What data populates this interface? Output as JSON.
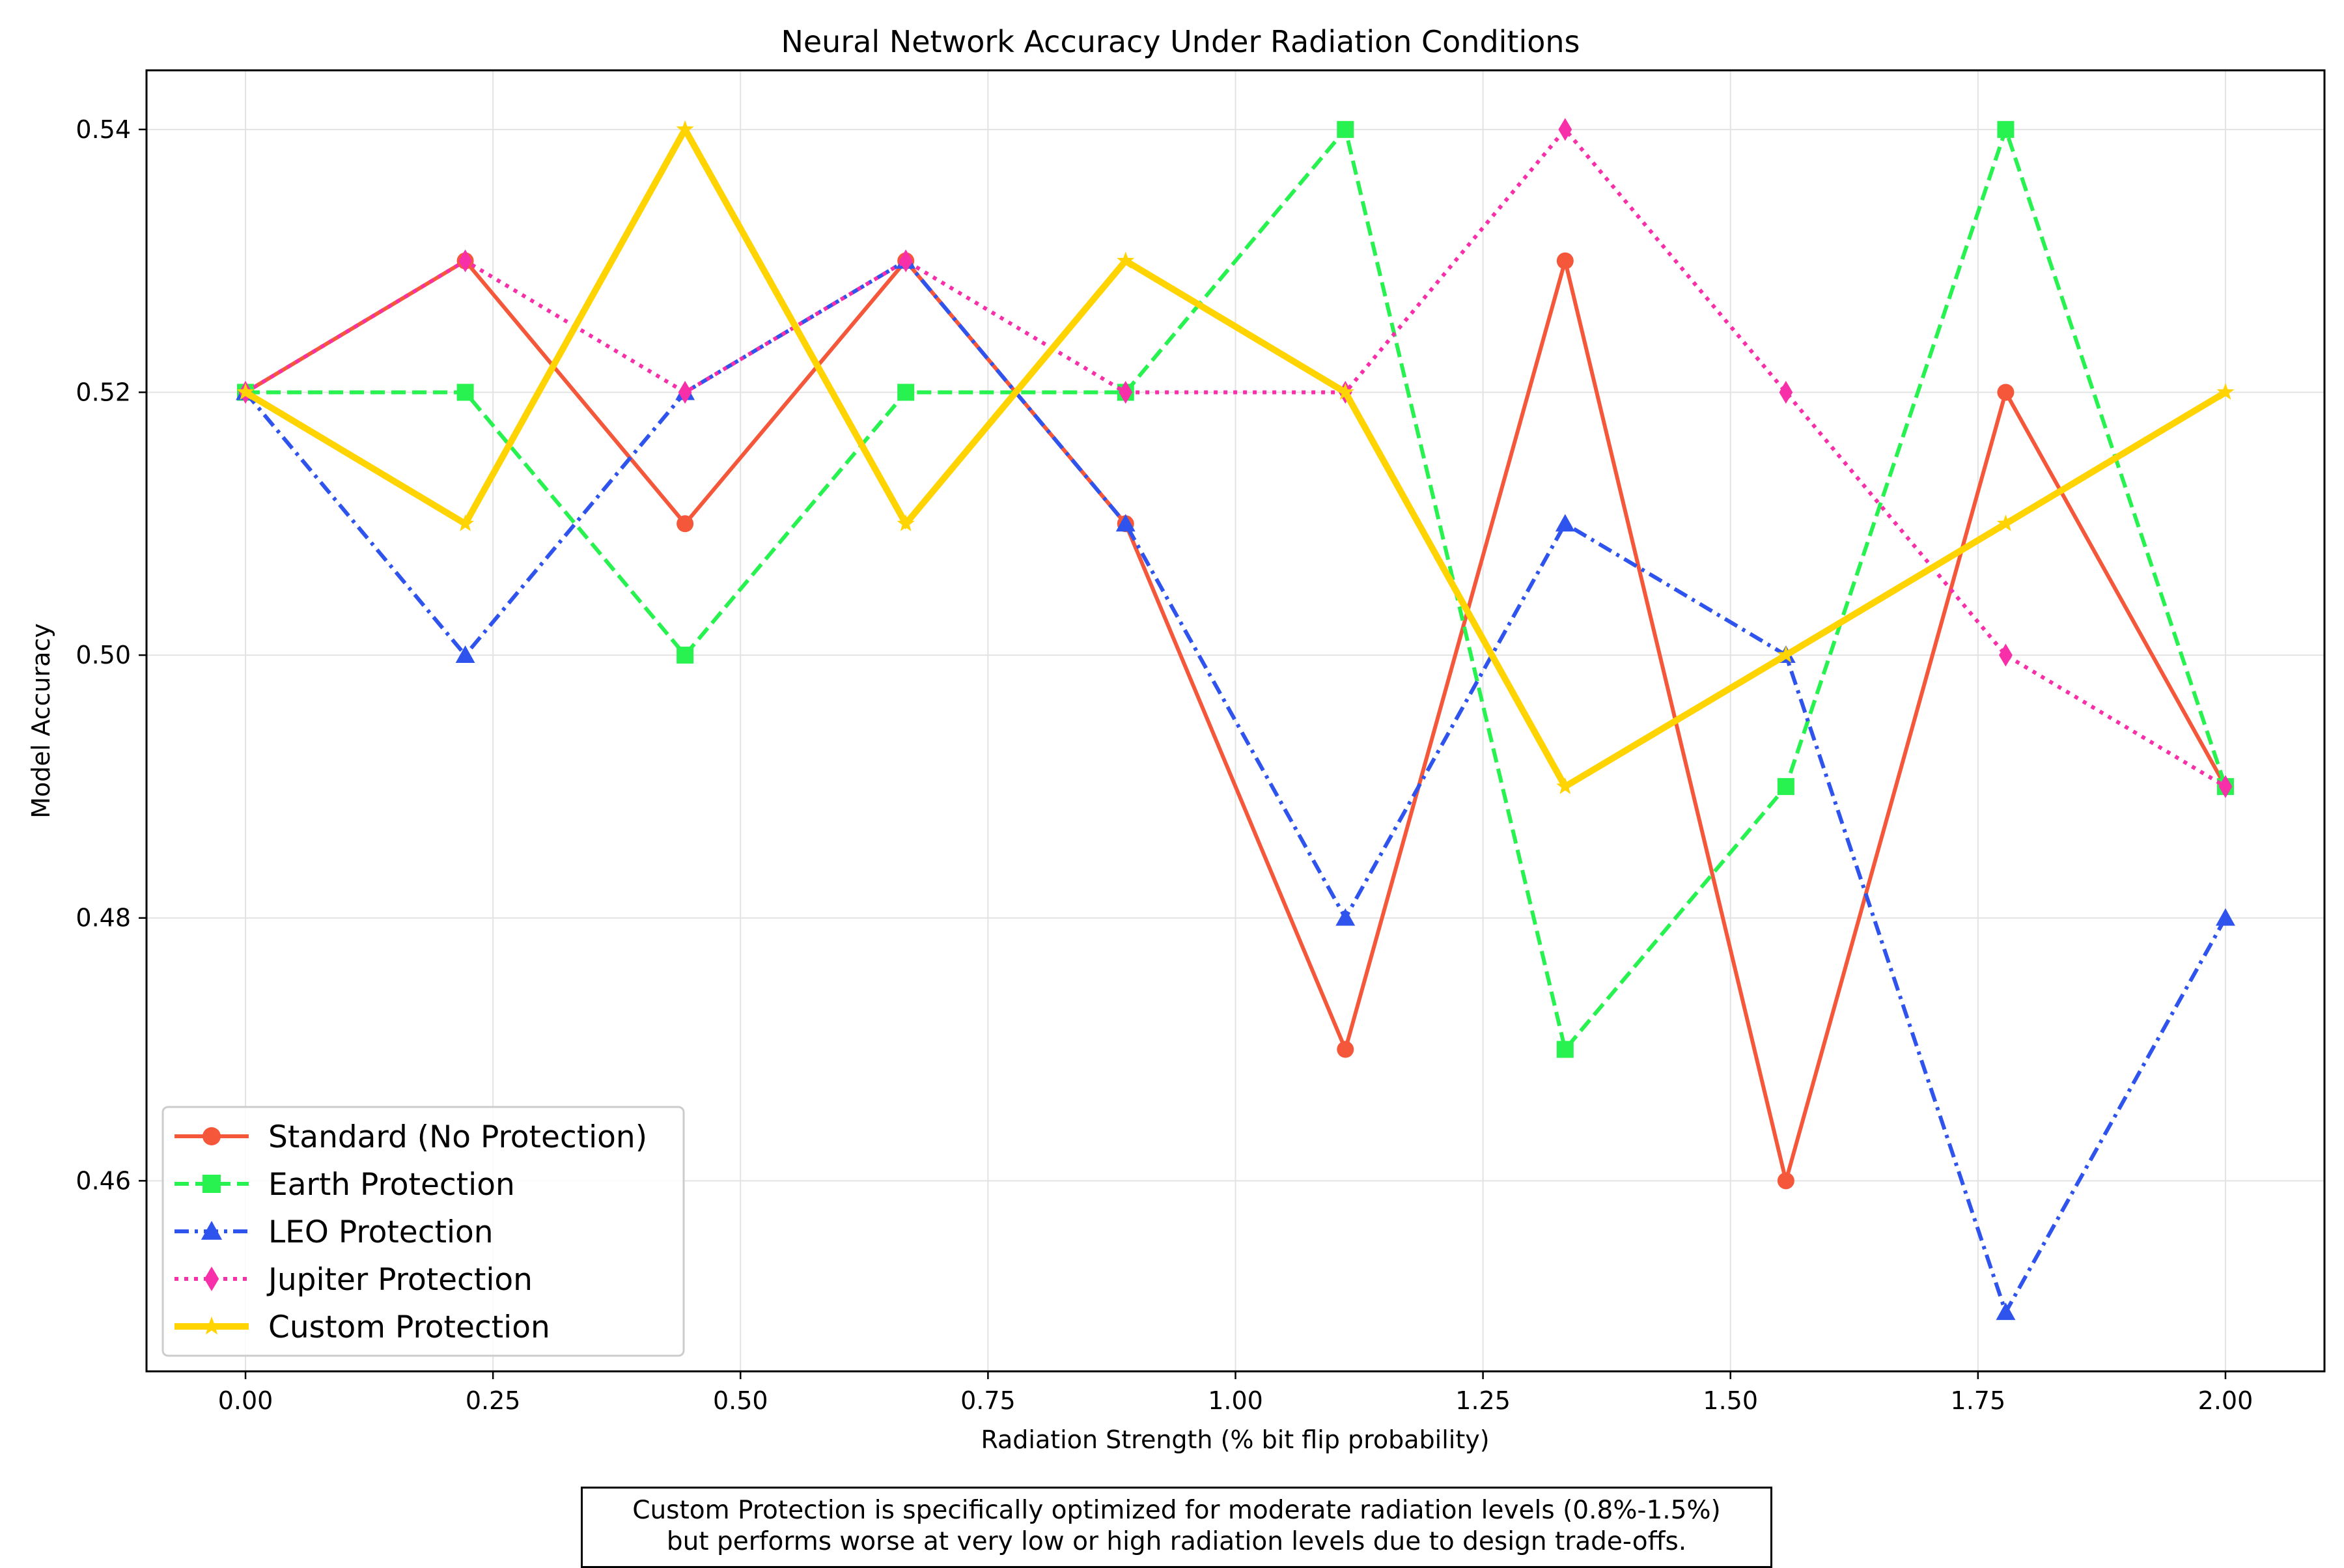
{
  "chart_data": {
    "type": "line",
    "title": "Neural Network Accuracy Under Radiation Conditions",
    "xlabel": "Radiation Strength (% bit flip probability)",
    "ylabel": "Model Accuracy",
    "xlim": [
      -0.1,
      2.1
    ],
    "ylim": [
      0.4455,
      0.5445
    ],
    "xticks": [
      0.0,
      0.25,
      0.5,
      0.75,
      1.0,
      1.25,
      1.5,
      1.75,
      2.0
    ],
    "xtick_labels": [
      "0.00",
      "0.25",
      "0.50",
      "0.75",
      "1.00",
      "1.25",
      "1.50",
      "1.75",
      "2.00"
    ],
    "yticks": [
      0.46,
      0.48,
      0.5,
      0.52,
      0.54
    ],
    "ytick_labels": [
      "0.46",
      "0.48",
      "0.50",
      "0.52",
      "0.54"
    ],
    "grid": true,
    "legend_position": "lower-left",
    "x": [
      0.0,
      0.222,
      0.444,
      0.667,
      0.889,
      1.111,
      1.333,
      1.556,
      1.778,
      2.0
    ],
    "series": [
      {
        "name": "Standard (No Protection)",
        "color": "#f4573a",
        "line_style": "solid",
        "marker": "circle",
        "values": [
          0.52,
          0.53,
          0.51,
          0.53,
          0.51,
          0.47,
          0.53,
          0.46,
          0.52,
          0.49
        ]
      },
      {
        "name": "Earth Protection",
        "color": "#27f24f",
        "line_style": "dashed",
        "marker": "square",
        "values": [
          0.52,
          0.52,
          0.5,
          0.52,
          0.52,
          0.54,
          0.47,
          0.49,
          0.54,
          0.49
        ]
      },
      {
        "name": "LEO Protection",
        "color": "#2f54ed",
        "line_style": "dashdot",
        "marker": "triangle",
        "values": [
          0.52,
          0.5,
          0.52,
          0.53,
          0.51,
          0.48,
          0.51,
          0.5,
          0.45,
          0.48
        ]
      },
      {
        "name": "Jupiter Protection",
        "color": "#f72fa8",
        "line_style": "dotted",
        "marker": "diamond",
        "values": [
          0.52,
          0.53,
          0.52,
          0.53,
          0.52,
          0.52,
          0.54,
          0.52,
          0.5,
          0.49
        ]
      },
      {
        "name": "Custom Protection",
        "color": "#ffd400",
        "line_style": "solid-thick",
        "marker": "star",
        "values": [
          0.52,
          0.51,
          0.54,
          0.51,
          0.53,
          0.52,
          0.49,
          0.5,
          0.51,
          0.52
        ]
      }
    ],
    "annotation": [
      "Custom Protection is specifically optimized for moderate radiation levels (0.8%-1.5%)",
      "but performs worse at very low or high radiation levels due to design trade-offs."
    ]
  }
}
